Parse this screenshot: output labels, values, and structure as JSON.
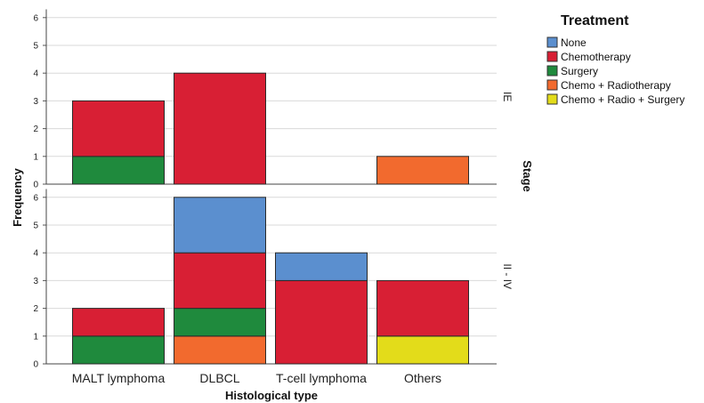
{
  "chart_data": {
    "type": "bar",
    "stacked": true,
    "faceted": true,
    "xlabel": "Histological type",
    "ylabel": "Frequency",
    "facet_label": "Stage",
    "categories": [
      "MALT lymphoma",
      "DLBCL",
      "T-cell lymphoma",
      "Others"
    ],
    "y_ticks": [
      0,
      1,
      2,
      3,
      4,
      5,
      6
    ],
    "ylim": [
      0,
      6.3
    ],
    "grid": "horizontal",
    "legend_title": "Treatment",
    "legend_position": "right",
    "series": [
      {
        "name": "None",
        "color": "#5b8fcf"
      },
      {
        "name": "Chemotherapy",
        "color": "#d81f34"
      },
      {
        "name": "Surgery",
        "color": "#1f8a3d"
      },
      {
        "name": "Chemo +  Radiotherapy",
        "color": "#f26a2e"
      },
      {
        "name": "Chemo + Radio + Surgery",
        "color": "#e3dc1a"
      }
    ],
    "panels": [
      {
        "label": "IE",
        "stack_order": [
          "Surgery",
          "Chemo +  Radiotherapy",
          "Chemotherapy",
          "None",
          "Chemo + Radio + Surgery"
        ],
        "values": {
          "None": [
            0,
            0,
            0,
            0
          ],
          "Chemotherapy": [
            2,
            4,
            0,
            0
          ],
          "Surgery": [
            1,
            0,
            0,
            0
          ],
          "Chemo +  Radiotherapy": [
            0,
            0,
            0,
            1
          ],
          "Chemo + Radio + Surgery": [
            0,
            0,
            0,
            0
          ]
        }
      },
      {
        "label": "II - IV",
        "stack_order": [
          "Chemo + Radio + Surgery",
          "Chemo +  Radiotherapy",
          "Surgery",
          "Chemotherapy",
          "None"
        ],
        "values": {
          "None": [
            0,
            2,
            1,
            0
          ],
          "Chemotherapy": [
            1,
            2,
            3,
            2
          ],
          "Surgery": [
            1,
            1,
            0,
            0
          ],
          "Chemo +  Radiotherapy": [
            0,
            1,
            0,
            0
          ],
          "Chemo + Radio + Surgery": [
            0,
            0,
            0,
            1
          ]
        }
      }
    ]
  }
}
